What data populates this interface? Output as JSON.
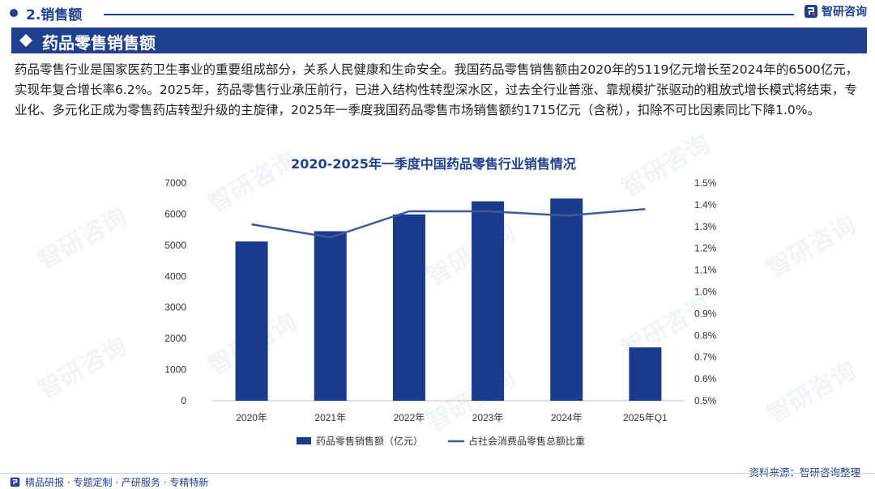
{
  "header": {
    "section_title": "2.销售额",
    "brand_name": "智研咨询"
  },
  "banner": {
    "title": "药品零售销售额"
  },
  "paragraph": "药品零售行业是国家医药卫生事业的重要组成部分，关系人民健康和生命安全。我国药品零售销售额由2020年的5119亿元增长至2024年的6500亿元，实现年复合增长率6.2%。2025年，药品零售行业承压前行，已进入结构性转型深水区，过去全行业普涨、靠规模扩张驱动的粗放式增长模式将结束，专业化、多元化正成为零售药店转型升级的主旋律，2025年一季度我国药品零售市场销售额约1715亿元（含税），扣除不可比因素同比下降1.0%。",
  "watermark": "智研咨询",
  "chart_data": {
    "type": "bar",
    "title": "2020-2025年一季度中国药品零售行业销售情况",
    "categories": [
      "2020年",
      "2021年",
      "2022年",
      "2023年",
      "2024年",
      "2025年Q1"
    ],
    "series": [
      {
        "name": "药品零售销售额（亿元）",
        "type": "bar",
        "axis": "left",
        "color": "#1a3a8e",
        "values": [
          5119,
          5449,
          5990,
          6410,
          6500,
          1715
        ]
      },
      {
        "name": "占社会消费品零售总额比重",
        "type": "line",
        "axis": "right",
        "color": "#3d5a99",
        "values": [
          1.31,
          1.25,
          1.37,
          1.37,
          1.35,
          1.38
        ]
      }
    ],
    "y_left": {
      "min": 0,
      "max": 7000,
      "step": 1000,
      "ticks": [
        "0",
        "1000",
        "2000",
        "3000",
        "4000",
        "5000",
        "6000",
        "7000"
      ]
    },
    "y_right": {
      "min": 0.5,
      "max": 1.5,
      "step": 0.1,
      "ticks": [
        "0.5%",
        "0.6%",
        "0.7%",
        "0.8%",
        "0.9%",
        "1.0%",
        "1.1%",
        "1.2%",
        "1.3%",
        "1.4%",
        "1.5%"
      ]
    },
    "grid": false,
    "legend_position": "bottom"
  },
  "footer": {
    "source": "资料来源：智研咨询整理",
    "slogan": "精品研报 · 专题定制 · 产研服务 · 专精特新"
  }
}
